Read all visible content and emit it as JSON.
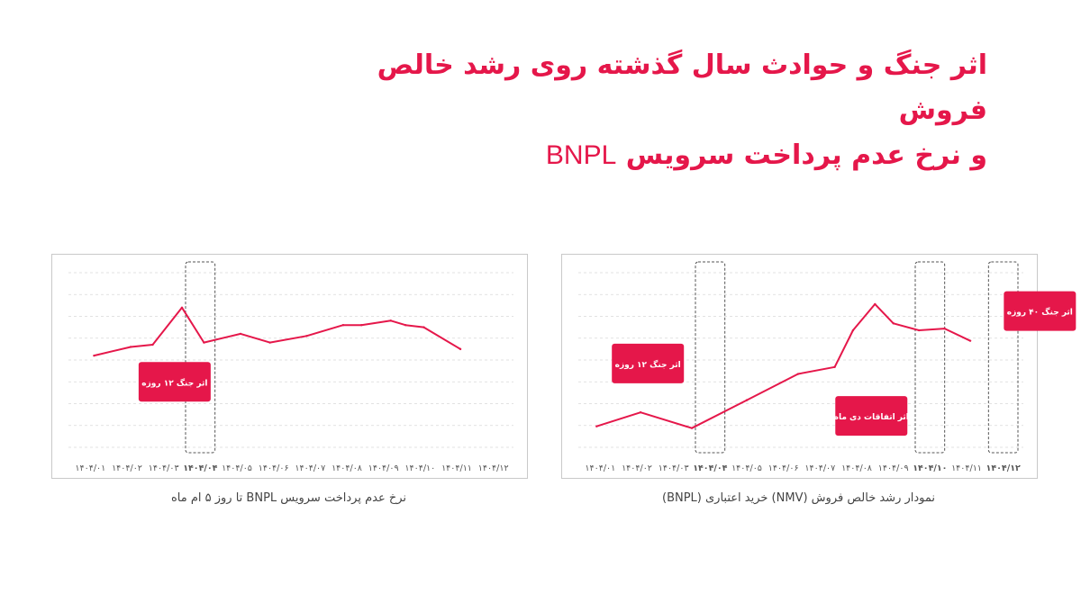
{
  "heading": {
    "line1": "اثر جنگ و حوادث سال گذشته روی رشد خالص فروش",
    "line2_prefix": "و نرخ عدم پرداخت سرویس",
    "line2_brand": "BNPL"
  },
  "captions": {
    "left": "نرخ عدم پرداخت سرویس BNPL تا روز ۵ ام ماه",
    "right": "نمودار رشد خالص فروش (NMV) خرید اعتباری (BNPL)"
  },
  "colors": {
    "accent": "#e5174a",
    "grid": "#d9d9d9",
    "box": "#555555"
  },
  "chart_data": [
    {
      "type": "line",
      "categories": [
        "۱۴۰۴/۰۱",
        "۱۴۰۴/۰۲",
        "۱۴۰۴/۰۳",
        "۱۴۰۴/۰۴",
        "۱۴۰۴/۰۵",
        "۱۴۰۴/۰۶",
        "۱۴۰۴/۰۷",
        "۱۴۰۴/۰۸",
        "۱۴۰۴/۰۹",
        "۱۴۰۴/۱۰",
        "۱۴۰۴/۱۱",
        "۱۴۰۴/۱۲"
      ],
      "bold_ticks": [
        "۱۴۰۴/۰۴"
      ],
      "x": [
        0.6,
        1.6,
        2.2,
        3.0,
        3.6,
        4.6,
        5.4,
        6.4,
        7.4,
        7.9,
        8.7,
        9.1,
        9.6,
        10.6
      ],
      "y": [
        6.2,
        6.6,
        6.7,
        8.4,
        6.8,
        7.2,
        6.8,
        7.1,
        7.6,
        7.6,
        7.8,
        7.6,
        7.5,
        6.5
      ],
      "ylim": [
        2,
        10
      ],
      "highlights": [
        3
      ],
      "annotations": [
        {
          "text": "اثر جنگ ۱۲ روزه",
          "x": 2.8,
          "y": 5.0
        }
      ]
    },
    {
      "type": "line",
      "categories": [
        "۱۴۰۴/۰۱",
        "۱۴۰۴/۰۲",
        "۱۴۰۴/۰۳",
        "۱۴۰۴/۰۴",
        "۱۴۰۴/۰۵",
        "۱۴۰۴/۰۶",
        "۱۴۰۴/۰۷",
        "۱۴۰۴/۰۸",
        "۱۴۰۴/۰۹",
        "۱۴۰۴/۱۰",
        "۱۴۰۴/۱۱",
        "۱۴۰۴/۱۲"
      ],
      "bold_ticks": [
        "۱۴۰۴/۰۴",
        "۱۴۰۴/۱۰",
        "۱۴۰۴/۱۲"
      ],
      "x": [
        0.4,
        1.6,
        3.0,
        4.5,
        5.9,
        6.9,
        7.4,
        8.0,
        8.5,
        9.2,
        9.9,
        10.6
      ],
      "y": [
        1.2,
        2.0,
        1.1,
        2.7,
        4.2,
        4.6,
        6.7,
        8.2,
        7.1,
        6.7,
        6.8,
        6.1
      ],
      "ylim": [
        0,
        10
      ],
      "highlights": [
        3,
        9,
        11
      ],
      "annotations": [
        {
          "text": "اثر جنگ ۱۲ روزه",
          "x": 1.8,
          "y": 4.8
        },
        {
          "text": "اثر اتفاقات دی ماه",
          "x": 7.9,
          "y": 1.8
        },
        {
          "text": "اثر جنگ ۴۰ روزه",
          "x": 12.5,
          "y": 7.8
        }
      ]
    }
  ]
}
